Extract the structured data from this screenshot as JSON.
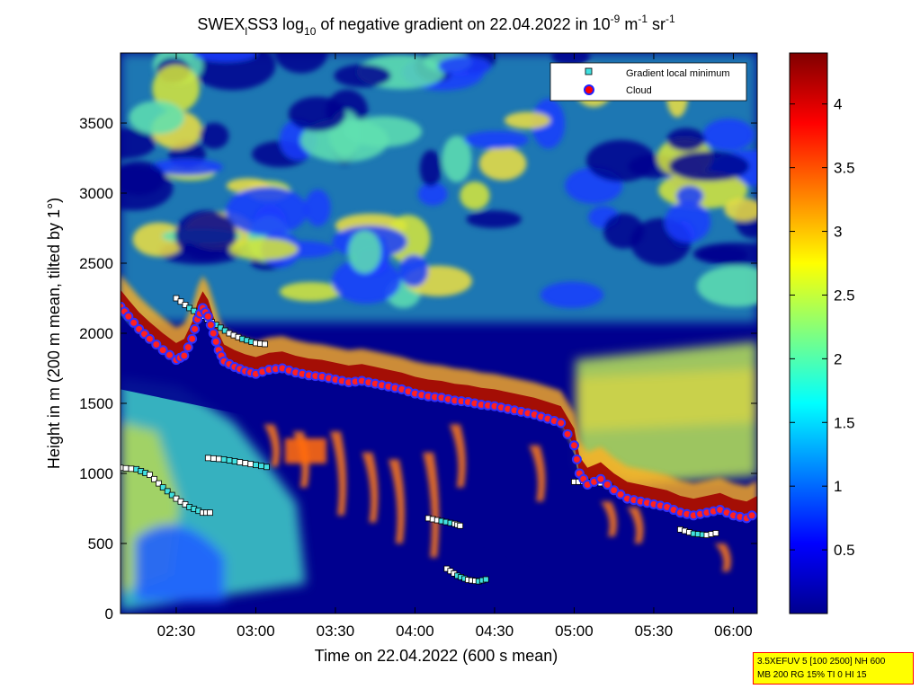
{
  "chart_data": {
    "type": "heatmap",
    "title": {
      "prefix": "SWEX",
      "sub": "l",
      "mid": "SS3 log",
      "sub2": "10",
      "rest": " of negative gradient on 22.04.2022 in 10",
      "exp1": "-9",
      "unit1": " m",
      "exp2": "-1",
      "unit2": " sr",
      "exp3": "-1"
    },
    "xlabel": "Time on 22.04.2022 (600 s mean)",
    "ylabel": "Height in m (200 m mean, tilted by 1°)",
    "x_range_minutes": [
      129,
      369
    ],
    "x_ticks": [
      {
        "label": "02:30",
        "min": 150
      },
      {
        "label": "03:00",
        "min": 180
      },
      {
        "label": "03:30",
        "min": 210
      },
      {
        "label": "04:00",
        "min": 240
      },
      {
        "label": "04:30",
        "min": 270
      },
      {
        "label": "05:00",
        "min": 300
      },
      {
        "label": "05:30",
        "min": 330
      },
      {
        "label": "06:00",
        "min": 360
      }
    ],
    "y_range": [
      0,
      4000
    ],
    "y_ticks": [
      0,
      500,
      1000,
      1500,
      2000,
      2500,
      3000,
      3500
    ],
    "colorbar": {
      "range": [
        0,
        4.4
      ],
      "ticks": [
        "0.5",
        "1",
        "1.5",
        "2",
        "2.5",
        "3",
        "3.5",
        "4"
      ],
      "tick_values": [
        0.5,
        1,
        1.5,
        2,
        2.5,
        3,
        3.5,
        4
      ],
      "colormap": "jet"
    },
    "legend": {
      "placement": "top-right",
      "entries": [
        {
          "name": "Gradient local minimum",
          "marker": "square",
          "color": "#40e0e0"
        },
        {
          "name": "Cloud",
          "marker": "circle",
          "color": "#ff0000",
          "edge": "#2020ff"
        }
      ]
    },
    "cloud_base": [
      [
        129,
        2190
      ],
      [
        132,
        2120
      ],
      [
        136,
        2030
      ],
      [
        140,
        1960
      ],
      [
        145,
        1880
      ],
      [
        150,
        1810
      ],
      [
        153,
        1840
      ],
      [
        156,
        1960
      ],
      [
        158,
        2100
      ],
      [
        160,
        2180
      ],
      [
        162,
        2120
      ],
      [
        164,
        2000
      ],
      [
        166,
        1880
      ],
      [
        168,
        1800
      ],
      [
        172,
        1760
      ],
      [
        176,
        1730
      ],
      [
        180,
        1710
      ],
      [
        185,
        1740
      ],
      [
        190,
        1750
      ],
      [
        195,
        1720
      ],
      [
        200,
        1700
      ],
      [
        205,
        1690
      ],
      [
        210,
        1670
      ],
      [
        215,
        1650
      ],
      [
        220,
        1660
      ],
      [
        225,
        1640
      ],
      [
        230,
        1620
      ],
      [
        235,
        1600
      ],
      [
        240,
        1570
      ],
      [
        245,
        1550
      ],
      [
        250,
        1540
      ],
      [
        255,
        1520
      ],
      [
        260,
        1510
      ],
      [
        265,
        1490
      ],
      [
        270,
        1480
      ],
      [
        275,
        1460
      ],
      [
        280,
        1440
      ],
      [
        285,
        1420
      ],
      [
        290,
        1390
      ],
      [
        295,
        1360
      ],
      [
        300,
        1200
      ],
      [
        302,
        1000
      ],
      [
        305,
        920
      ],
      [
        310,
        960
      ],
      [
        315,
        880
      ],
      [
        320,
        820
      ],
      [
        325,
        800
      ],
      [
        330,
        780
      ],
      [
        335,
        760
      ],
      [
        340,
        720
      ],
      [
        345,
        700
      ],
      [
        350,
        720
      ],
      [
        355,
        740
      ],
      [
        360,
        700
      ],
      [
        365,
        680
      ],
      [
        369,
        720
      ]
    ],
    "gradient_min_segments": [
      [
        [
          129,
          1040
        ],
        [
          135,
          1030
        ],
        [
          140,
          990
        ],
        [
          145,
          900
        ],
        [
          150,
          820
        ],
        [
          155,
          760
        ],
        [
          160,
          720
        ],
        [
          164,
          720
        ]
      ],
      [
        [
          150,
          2250
        ],
        [
          155,
          2180
        ],
        [
          160,
          2120
        ],
        [
          165,
          2060
        ],
        [
          170,
          2000
        ],
        [
          175,
          1960
        ],
        [
          180,
          1930
        ],
        [
          185,
          1920
        ]
      ],
      [
        [
          162,
          1110
        ],
        [
          168,
          1100
        ],
        [
          174,
          1080
        ],
        [
          180,
          1060
        ],
        [
          186,
          1040
        ]
      ],
      [
        [
          245,
          680
        ],
        [
          250,
          660
        ],
        [
          255,
          640
        ],
        [
          258,
          620
        ]
      ],
      [
        [
          252,
          320
        ],
        [
          256,
          270
        ],
        [
          260,
          240
        ],
        [
          264,
          230
        ],
        [
          268,
          250
        ]
      ],
      [
        [
          300,
          940
        ],
        [
          305,
          940
        ],
        [
          310,
          930
        ],
        [
          315,
          900
        ]
      ],
      [
        [
          340,
          600
        ],
        [
          345,
          570
        ],
        [
          350,
          560
        ],
        [
          355,
          580
        ]
      ]
    ],
    "series": [
      {
        "name": "Gradient local minimum"
      },
      {
        "name": "Cloud"
      }
    ]
  },
  "info_box": {
    "line1": "3.5XEFUV 5 [100 2500] NH 600",
    "line2": "MB 200 RG 15% TI 0 HI 15"
  },
  "colors": {
    "background": "#ffffff",
    "low": "#00008f",
    "high": "#800000"
  }
}
